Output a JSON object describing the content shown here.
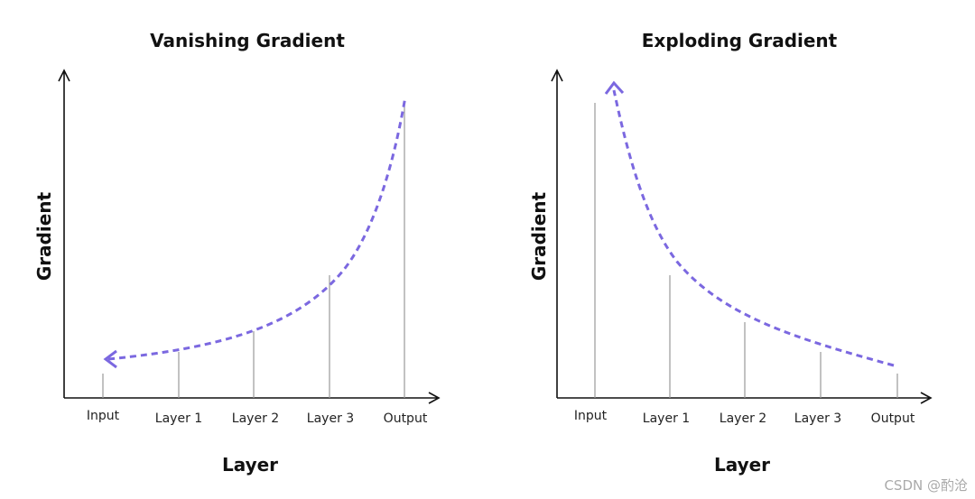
{
  "panels": [
    {
      "title": "Vanishing Gradient",
      "y_label": "Gradient",
      "x_label": "Layer",
      "categories": [
        "Input",
        "Layer 1",
        "Layer 2",
        "Layer 3",
        "Output"
      ]
    },
    {
      "title": "Exploding Gradient",
      "y_label": "Gradient",
      "x_label": "Layer",
      "categories": [
        "Input",
        "Layer 1",
        "Layer 2",
        "Layer 3",
        "Output"
      ]
    }
  ],
  "watermark": "CSDN @酌沧"
}
